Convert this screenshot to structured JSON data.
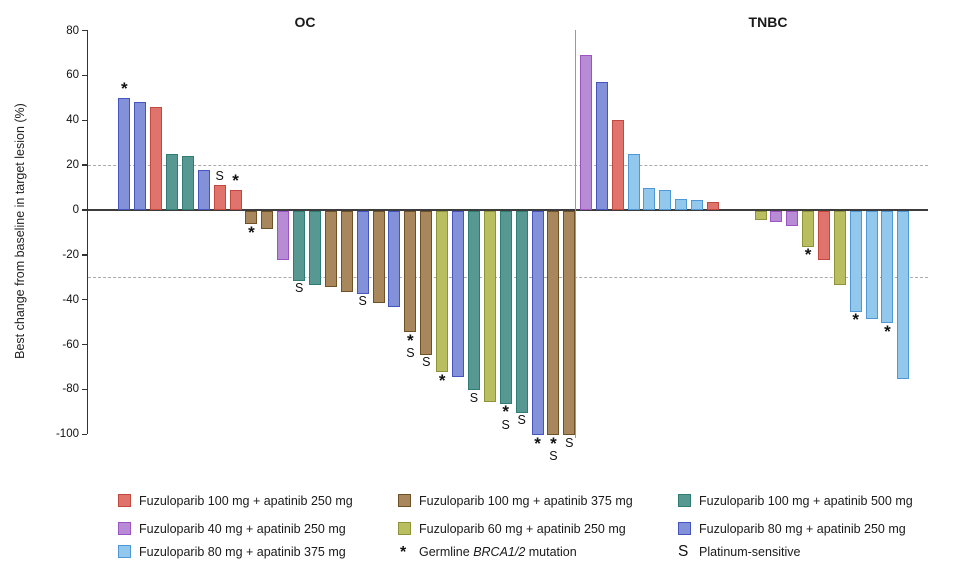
{
  "chart_data": {
    "type": "bar",
    "variant": "waterfall",
    "title": "",
    "ylabel": "Best change from baseline in target lesion (%)",
    "ylim": [
      -100,
      80
    ],
    "yticks": [
      80,
      60,
      40,
      20,
      0,
      -20,
      -40,
      -60,
      -80,
      -100
    ],
    "reference_lines_y": [
      20,
      -30
    ],
    "legend_position": "bottom",
    "marker_meanings": {
      "*": "Germline BRCA1/2 mutation",
      "S": "Platinum-sensitive"
    },
    "groups": {
      "red": {
        "label": "Fuzuloparib 100 mg + apatinib 250 mg",
        "fill": "#E0746C",
        "border": "#C24840"
      },
      "purple": {
        "label": "Fuzuloparib 40 mg + apatinib 250 mg",
        "fill": "#B78CD4",
        "border": "#9C54C5"
      },
      "sky": {
        "label": "Fuzuloparib 80 mg + apatinib 375 mg",
        "fill": "#93C8ED",
        "border": "#4F97D6"
      },
      "brown": {
        "label": "Fuzuloparib 100 mg + apatinib 375 mg",
        "fill": "#A8875C",
        "border": "#6F5128"
      },
      "olive": {
        "label": "Fuzuloparib 60 mg + apatinib 250 mg",
        "fill": "#B9BE60",
        "border": "#8E9338"
      },
      "teal": {
        "label": "Fuzuloparib 100 mg + apatinib 500 mg",
        "fill": "#579992",
        "border": "#2E7C72"
      },
      "indigo": {
        "label": "Fuzuloparib 80 mg + apatinib 250 mg",
        "fill": "#8391D8",
        "border": "#4455C0"
      }
    },
    "panels": [
      {
        "title": "OC",
        "bars": [
          {
            "value": 50,
            "group": "indigo",
            "marks": [
              "*"
            ]
          },
          {
            "value": 48,
            "group": "indigo",
            "marks": []
          },
          {
            "value": 46,
            "group": "red",
            "marks": []
          },
          {
            "value": 25,
            "group": "teal",
            "marks": []
          },
          {
            "value": 24,
            "group": "teal",
            "marks": []
          },
          {
            "value": 18,
            "group": "indigo",
            "marks": []
          },
          {
            "value": 11,
            "group": "red",
            "marks": [
              "S"
            ]
          },
          {
            "value": 9,
            "group": "red",
            "marks": [
              "*"
            ]
          },
          {
            "value": -6,
            "group": "brown",
            "marks": [
              "*"
            ]
          },
          {
            "value": -8,
            "group": "brown",
            "marks": []
          },
          {
            "value": -22,
            "group": "purple",
            "marks": []
          },
          {
            "value": -31,
            "group": "teal",
            "marks": [
              "S"
            ]
          },
          {
            "value": -33,
            "group": "teal",
            "marks": []
          },
          {
            "value": -34,
            "group": "brown",
            "marks": []
          },
          {
            "value": -36,
            "group": "brown",
            "marks": []
          },
          {
            "value": -37,
            "group": "indigo",
            "marks": [
              "S"
            ]
          },
          {
            "value": -41,
            "group": "brown",
            "marks": []
          },
          {
            "value": -43,
            "group": "indigo",
            "marks": []
          },
          {
            "value": -54,
            "group": "brown",
            "marks": [
              "*",
              "S"
            ]
          },
          {
            "value": -64,
            "group": "brown",
            "marks": [
              "S"
            ]
          },
          {
            "value": -72,
            "group": "olive",
            "marks": [
              "*"
            ]
          },
          {
            "value": -74,
            "group": "indigo",
            "marks": []
          },
          {
            "value": -80,
            "group": "teal",
            "marks": [
              "S"
            ]
          },
          {
            "value": -85,
            "group": "olive",
            "marks": []
          },
          {
            "value": -86,
            "group": "teal",
            "marks": [
              "*",
              "S"
            ]
          },
          {
            "value": -90,
            "group": "teal",
            "marks": [
              "S"
            ]
          },
          {
            "value": -100,
            "group": "indigo",
            "marks": [
              "*"
            ]
          },
          {
            "value": -100,
            "group": "brown",
            "marks": [
              "*",
              "S"
            ]
          },
          {
            "value": -100,
            "group": "brown",
            "marks": [
              "S"
            ]
          }
        ]
      },
      {
        "title": "TNBC",
        "gap_after_bar_index": 8,
        "gap_slots": 2,
        "bars": [
          {
            "value": 69,
            "group": "purple",
            "marks": []
          },
          {
            "value": 57,
            "group": "indigo",
            "marks": []
          },
          {
            "value": 40,
            "group": "red",
            "marks": []
          },
          {
            "value": 25,
            "group": "sky",
            "marks": []
          },
          {
            "value": 10,
            "group": "sky",
            "marks": []
          },
          {
            "value": 9,
            "group": "sky",
            "marks": []
          },
          {
            "value": 5,
            "group": "sky",
            "marks": []
          },
          {
            "value": 4.5,
            "group": "sky",
            "marks": []
          },
          {
            "value": 3.5,
            "group": "red",
            "marks": []
          },
          {
            "value": -4,
            "group": "olive",
            "marks": []
          },
          {
            "value": -5,
            "group": "purple",
            "marks": []
          },
          {
            "value": -6.5,
            "group": "purple",
            "marks": []
          },
          {
            "value": -16,
            "group": "olive",
            "marks": [
              "*"
            ]
          },
          {
            "value": -22,
            "group": "red",
            "marks": []
          },
          {
            "value": -33,
            "group": "olive",
            "marks": []
          },
          {
            "value": -45,
            "group": "sky",
            "marks": [
              "*"
            ]
          },
          {
            "value": -48,
            "group": "sky",
            "marks": []
          },
          {
            "value": -50,
            "group": "sky",
            "marks": [
              "*"
            ]
          },
          {
            "value": -75,
            "group": "sky",
            "marks": []
          }
        ]
      }
    ]
  },
  "legend": {
    "columns": [
      {
        "items": [
          {
            "swatch": "red"
          },
          {
            "swatch": "purple"
          },
          {
            "swatch": "sky"
          }
        ]
      },
      {
        "items": [
          {
            "swatch": "brown"
          },
          {
            "swatch": "olive"
          },
          {
            "symbol": "*",
            "label_prefix": "Germline ",
            "label_italic": "BRCA1/2",
            "label_suffix": " mutation"
          }
        ]
      },
      {
        "items": [
          {
            "swatch": "teal"
          },
          {
            "swatch": "indigo"
          },
          {
            "symbol": "S",
            "label": "Platinum-sensitive"
          }
        ]
      }
    ]
  }
}
